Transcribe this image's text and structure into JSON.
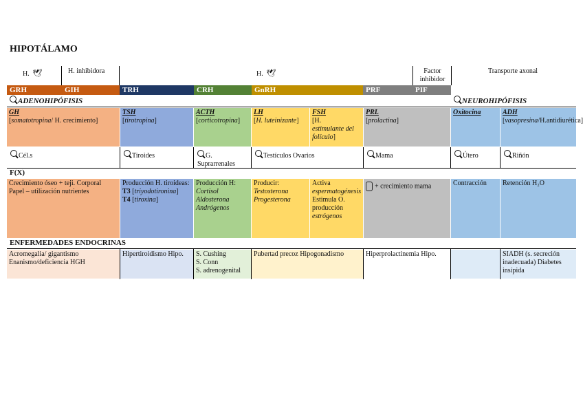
{
  "title": "HIPOTÁLAMO",
  "top_row": {
    "h_left": "H.",
    "h_inhibidora": "H. inhibidora",
    "h_mid": "H.",
    "factor_inhibidor": "Factor inhibidor",
    "transporte_axonal": "Transporte axonal"
  },
  "hormones_row": [
    "GRH",
    "GIH",
    "TRH",
    "CRH",
    "GnRH",
    "PRF",
    "PIF"
  ],
  "sections": {
    "adeno": "ADENOHIPÓFISIS",
    "neuro": "NEUROHIPÓFISIS",
    "fx": "F(X)",
    "enfermedades": "ENFERMEDADES ENDOCRINAS"
  },
  "pituitary": {
    "gh": {
      "name": "GH",
      "desc_ital": "somatotropina",
      "desc_rest": "/ H. crecimiento"
    },
    "tsh": {
      "name": "TSH",
      "desc": "tirotropina"
    },
    "acth": {
      "name": "ACTH",
      "desc": "corticotropina"
    },
    "lh": {
      "name": "LH",
      "desc": "H. luteinizante"
    },
    "fsh": {
      "name": "FSH",
      "desc_1": "H.",
      "desc_2": "estimulante del folículo"
    },
    "prl": {
      "name": "PRL",
      "desc": "prolactina"
    },
    "oxi": {
      "name": "Oxitocina"
    },
    "adh": {
      "name": "ADH",
      "desc_ital": "vasopresina",
      "desc_rest": "/H.antidiurética"
    }
  },
  "targets": [
    "Cél.s",
    "Tiroides",
    "G. Suprarrenales",
    "Testículos Ovarios",
    "Mama",
    "Útero",
    "Riñón"
  ],
  "functions": {
    "gh": "Crecimiento óseo + teji. Corporal Papel – utilización nutrientes",
    "tsh_1": "Producción H. tiroideas:",
    "tsh_t3": "T3",
    "tsh_t3_desc": "triyodotironina",
    "tsh_t4": "T4",
    "tsh_t4_desc": "tiroxina",
    "acth_1": "Producción H:",
    "acth_2": "Cortisol",
    "acth_3": "Aldosterona",
    "acth_4": "Andrógenos",
    "lh_1": "Producir:",
    "lh_2": "Testosterona",
    "lh_3": "Progesterona",
    "fsh_1": "Activa",
    "fsh_2": "espermatogénesis",
    "fsh_3": "Estimula O. producción",
    "fsh_4": "estrógenos",
    "prl": "+ crecimiento mama",
    "oxi": "Contracción",
    "adh": "Retención H₂O"
  },
  "diseases": {
    "gh": "Acromegalia/ gigantismo Enanismo/deficiencia HGH",
    "tsh": "Hipertiroidismo Hipo.",
    "acth_1": "S. Cushing",
    "acth_2": "S. Conn",
    "acth_3": "S. adrenogenital",
    "lh": "Pubertad precoz Hipogonadismo",
    "prl": "Hiperprolactinemia Hipo.",
    "adh": "SIADH (s. secreción inadecuada) Diabetes insípida"
  },
  "colors": {
    "grh": "#c55a11",
    "gih": "#c55a11",
    "trh": "#1f3864",
    "crh": "#538135",
    "gnrh": "#bf8f00",
    "prf": "#7f7f7f",
    "pif": "#7f7f7f",
    "gh": "#f4b183",
    "tsh": "#8faadc",
    "acth": "#a9d18e",
    "lh": "#ffd966",
    "prl": "#bfbfbf",
    "neuro": "#9dc3e6",
    "gh_light": "#fbe5d6",
    "tsh_light": "#dae3f3",
    "acth_light": "#e2f0d9",
    "lh_light": "#fff2cc",
    "neuro_light": "#deebf7"
  }
}
